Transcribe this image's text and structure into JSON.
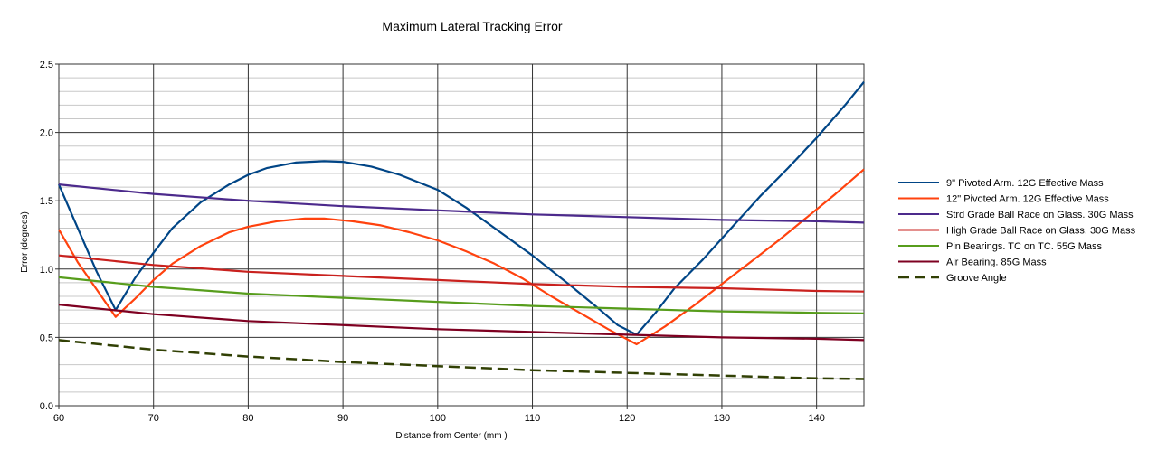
{
  "chart_data": {
    "type": "line",
    "title": "Maximum Lateral Tracking Error",
    "xlabel": "Distance from Center (mm )",
    "ylabel": "Error (degrees)",
    "xlim": [
      60,
      145
    ],
    "ylim": [
      0,
      2.5
    ],
    "x_ticks": [
      60,
      70,
      80,
      90,
      100,
      110,
      120,
      130,
      140
    ],
    "x_tick_labels": [
      "60",
      "70",
      "80",
      "90",
      "100",
      "110",
      "120",
      "130",
      "140"
    ],
    "y_ticks": [
      0,
      0.5,
      1,
      1.5,
      2,
      2.5
    ],
    "y_tick_labels": [
      "0.0",
      "0.5",
      "1.0",
      "1.5",
      "2.0",
      "2.5"
    ],
    "y_minor_step": 0.1,
    "grid": true,
    "legend_position": "right",
    "series": [
      {
        "name": "9\" Pivoted Arm. 12G Effective Mass",
        "color": "#004586",
        "style": "solid",
        "points": [
          [
            60,
            1.62
          ],
          [
            62,
            1.3
          ],
          [
            64,
            0.98
          ],
          [
            66,
            0.7
          ],
          [
            68,
            0.93
          ],
          [
            70,
            1.12
          ],
          [
            72,
            1.3
          ],
          [
            75,
            1.49
          ],
          [
            78,
            1.62
          ],
          [
            80,
            1.69
          ],
          [
            82,
            1.74
          ],
          [
            85,
            1.78
          ],
          [
            88,
            1.79
          ],
          [
            90,
            1.785
          ],
          [
            93,
            1.75
          ],
          [
            96,
            1.69
          ],
          [
            100,
            1.58
          ],
          [
            103,
            1.45
          ],
          [
            106,
            1.3
          ],
          [
            110,
            1.1
          ],
          [
            114,
            0.88
          ],
          [
            117,
            0.71
          ],
          [
            119,
            0.59
          ],
          [
            121,
            0.52
          ],
          [
            123,
            0.68
          ],
          [
            125,
            0.86
          ],
          [
            128,
            1.07
          ],
          [
            131,
            1.3
          ],
          [
            134,
            1.53
          ],
          [
            137,
            1.74
          ],
          [
            140,
            1.96
          ],
          [
            143,
            2.2
          ],
          [
            145,
            2.37
          ]
        ]
      },
      {
        "name": "12\" Pivoted Arm. 12G Effective Mass",
        "color": "#ff420e",
        "style": "solid",
        "points": [
          [
            60,
            1.29
          ],
          [
            62,
            1.05
          ],
          [
            64,
            0.85
          ],
          [
            66,
            0.65
          ],
          [
            68,
            0.78
          ],
          [
            70,
            0.92
          ],
          [
            72,
            1.04
          ],
          [
            75,
            1.17
          ],
          [
            78,
            1.27
          ],
          [
            80,
            1.31
          ],
          [
            83,
            1.35
          ],
          [
            86,
            1.37
          ],
          [
            88,
            1.37
          ],
          [
            91,
            1.35
          ],
          [
            94,
            1.32
          ],
          [
            97,
            1.27
          ],
          [
            100,
            1.21
          ],
          [
            103,
            1.13
          ],
          [
            106,
            1.04
          ],
          [
            109,
            0.93
          ],
          [
            112,
            0.8
          ],
          [
            115,
            0.68
          ],
          [
            118,
            0.56
          ],
          [
            121,
            0.45
          ],
          [
            124,
            0.58
          ],
          [
            127,
            0.73
          ],
          [
            130,
            0.89
          ],
          [
            133,
            1.05
          ],
          [
            136,
            1.21
          ],
          [
            139,
            1.38
          ],
          [
            142,
            1.55
          ],
          [
            145,
            1.73
          ]
        ]
      },
      {
        "name": "Strd Grade Ball Race on Glass. 30G Mass",
        "color": "#4c2a8c",
        "style": "solid",
        "points": [
          [
            60,
            1.62
          ],
          [
            70,
            1.55
          ],
          [
            80,
            1.5
          ],
          [
            90,
            1.46
          ],
          [
            100,
            1.43
          ],
          [
            110,
            1.4
          ],
          [
            120,
            1.38
          ],
          [
            130,
            1.36
          ],
          [
            140,
            1.35
          ],
          [
            145,
            1.34
          ]
        ]
      },
      {
        "name": "High Grade Ball Race on Glass. 30G Mass",
        "color": "#c9211e",
        "style": "solid",
        "points": [
          [
            60,
            1.1
          ],
          [
            70,
            1.03
          ],
          [
            80,
            0.98
          ],
          [
            90,
            0.95
          ],
          [
            100,
            0.92
          ],
          [
            110,
            0.89
          ],
          [
            120,
            0.87
          ],
          [
            130,
            0.86
          ],
          [
            140,
            0.84
          ],
          [
            145,
            0.835
          ]
        ]
      },
      {
        "name": "Pin Bearings. TC on TC. 55G Mass",
        "color": "#579d1c",
        "style": "solid",
        "points": [
          [
            60,
            0.94
          ],
          [
            70,
            0.87
          ],
          [
            80,
            0.82
          ],
          [
            90,
            0.79
          ],
          [
            100,
            0.76
          ],
          [
            110,
            0.73
          ],
          [
            120,
            0.71
          ],
          [
            130,
            0.69
          ],
          [
            140,
            0.68
          ],
          [
            145,
            0.675
          ]
        ]
      },
      {
        "name": "Air Bearing. 85G Mass",
        "color": "#7e0021",
        "style": "solid",
        "points": [
          [
            60,
            0.74
          ],
          [
            70,
            0.67
          ],
          [
            80,
            0.62
          ],
          [
            90,
            0.59
          ],
          [
            100,
            0.56
          ],
          [
            110,
            0.54
          ],
          [
            120,
            0.52
          ],
          [
            130,
            0.5
          ],
          [
            140,
            0.49
          ],
          [
            145,
            0.48
          ]
        ]
      },
      {
        "name": "Groove Angle",
        "color": "#314004",
        "style": "dashed",
        "points": [
          [
            60,
            0.48
          ],
          [
            70,
            0.41
          ],
          [
            80,
            0.36
          ],
          [
            90,
            0.32
          ],
          [
            100,
            0.29
          ],
          [
            110,
            0.26
          ],
          [
            120,
            0.24
          ],
          [
            130,
            0.22
          ],
          [
            140,
            0.2
          ],
          [
            145,
            0.195
          ]
        ]
      }
    ]
  }
}
